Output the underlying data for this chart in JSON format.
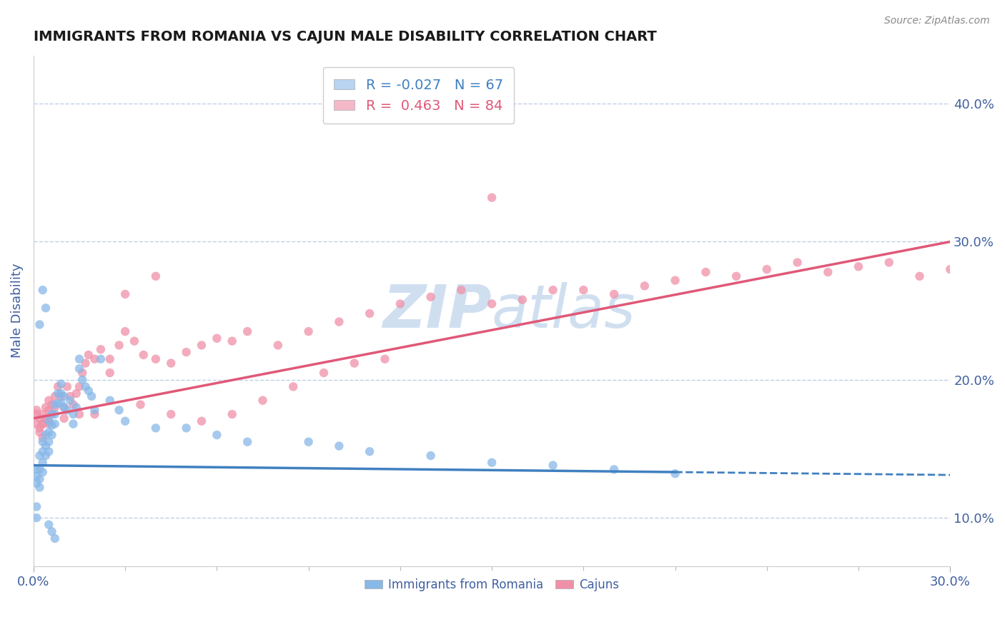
{
  "title": "IMMIGRANTS FROM ROMANIA VS CAJUN MALE DISABILITY CORRELATION CHART",
  "source": "Source: ZipAtlas.com",
  "ylabel": "Male Disability",
  "xlim": [
    0.0,
    0.3
  ],
  "ylim": [
    0.065,
    0.435
  ],
  "right_yticks": [
    0.1,
    0.2,
    0.3,
    0.4
  ],
  "right_yticklabels": [
    "10.0%",
    "20.0%",
    "30.0%",
    "40.0%"
  ],
  "legend_entries": [
    {
      "label": "R = -0.027   N = 67",
      "color": "#b8d4f0"
    },
    {
      "label": "R =  0.463   N = 84",
      "color": "#f4b8c8"
    }
  ],
  "legend_labels_bottom": [
    "Immigrants from Romania",
    "Cajuns"
  ],
  "romania_color": "#88b8e8",
  "cajun_color": "#f090a8",
  "romania_line_color": "#4080c0",
  "cajun_line_color": "#e05878",
  "watermark_color": "#d0dff0",
  "background_color": "#ffffff",
  "grid_color": "#c0d0e8",
  "title_color": "#1a1a1a",
  "axis_label_color": "#4060a0",
  "romania_line_solid_end": 0.21,
  "romania_scatter": {
    "x": [
      0.001,
      0.001,
      0.001,
      0.002,
      0.002,
      0.002,
      0.002,
      0.003,
      0.003,
      0.003,
      0.003,
      0.004,
      0.004,
      0.004,
      0.005,
      0.005,
      0.005,
      0.005,
      0.006,
      0.006,
      0.006,
      0.007,
      0.007,
      0.007,
      0.008,
      0.008,
      0.009,
      0.009,
      0.009,
      0.01,
      0.01,
      0.011,
      0.012,
      0.013,
      0.013,
      0.014,
      0.015,
      0.015,
      0.016,
      0.017,
      0.018,
      0.019,
      0.02,
      0.022,
      0.025,
      0.028,
      0.03,
      0.04,
      0.05,
      0.06,
      0.07,
      0.09,
      0.1,
      0.11,
      0.13,
      0.15,
      0.17,
      0.19,
      0.21,
      0.005,
      0.006,
      0.007,
      0.003,
      0.004,
      0.002,
      0.001,
      0.001
    ],
    "y": [
      0.135,
      0.13,
      0.125,
      0.145,
      0.135,
      0.128,
      0.122,
      0.155,
      0.148,
      0.14,
      0.133,
      0.16,
      0.152,
      0.145,
      0.17,
      0.162,
      0.155,
      0.148,
      0.175,
      0.167,
      0.16,
      0.182,
      0.175,
      0.168,
      0.19,
      0.183,
      0.197,
      0.19,
      0.183,
      0.188,
      0.18,
      0.178,
      0.185,
      0.175,
      0.168,
      0.18,
      0.215,
      0.208,
      0.2,
      0.195,
      0.192,
      0.188,
      0.178,
      0.215,
      0.185,
      0.178,
      0.17,
      0.165,
      0.165,
      0.16,
      0.155,
      0.155,
      0.152,
      0.148,
      0.145,
      0.14,
      0.138,
      0.135,
      0.132,
      0.095,
      0.09,
      0.085,
      0.265,
      0.252,
      0.24,
      0.1,
      0.108
    ]
  },
  "cajun_scatter": {
    "x": [
      0.001,
      0.001,
      0.002,
      0.002,
      0.003,
      0.003,
      0.003,
      0.004,
      0.004,
      0.005,
      0.005,
      0.005,
      0.006,
      0.006,
      0.007,
      0.007,
      0.008,
      0.009,
      0.01,
      0.011,
      0.012,
      0.013,
      0.014,
      0.015,
      0.016,
      0.017,
      0.018,
      0.02,
      0.022,
      0.025,
      0.028,
      0.03,
      0.033,
      0.036,
      0.04,
      0.045,
      0.05,
      0.055,
      0.06,
      0.065,
      0.07,
      0.08,
      0.09,
      0.1,
      0.11,
      0.12,
      0.13,
      0.14,
      0.15,
      0.16,
      0.17,
      0.18,
      0.19,
      0.2,
      0.21,
      0.22,
      0.23,
      0.24,
      0.25,
      0.26,
      0.27,
      0.28,
      0.29,
      0.3,
      0.15,
      0.04,
      0.03,
      0.02,
      0.015,
      0.01,
      0.005,
      0.003,
      0.002,
      0.001,
      0.025,
      0.035,
      0.045,
      0.055,
      0.065,
      0.075,
      0.085,
      0.095,
      0.105,
      0.115
    ],
    "y": [
      0.168,
      0.178,
      0.172,
      0.162,
      0.175,
      0.168,
      0.158,
      0.18,
      0.172,
      0.185,
      0.178,
      0.168,
      0.182,
      0.175,
      0.188,
      0.18,
      0.195,
      0.188,
      0.18,
      0.195,
      0.188,
      0.182,
      0.19,
      0.195,
      0.205,
      0.212,
      0.218,
      0.215,
      0.222,
      0.215,
      0.225,
      0.235,
      0.228,
      0.218,
      0.215,
      0.212,
      0.22,
      0.225,
      0.23,
      0.228,
      0.235,
      0.225,
      0.235,
      0.242,
      0.248,
      0.255,
      0.26,
      0.265,
      0.255,
      0.258,
      0.265,
      0.265,
      0.262,
      0.268,
      0.272,
      0.278,
      0.275,
      0.28,
      0.285,
      0.278,
      0.282,
      0.285,
      0.275,
      0.28,
      0.332,
      0.275,
      0.262,
      0.175,
      0.175,
      0.172,
      0.17,
      0.168,
      0.165,
      0.175,
      0.205,
      0.182,
      0.175,
      0.17,
      0.175,
      0.185,
      0.195,
      0.205,
      0.212,
      0.215
    ]
  },
  "romania_line": {
    "x0": 0.0,
    "x1": 0.3,
    "y0": 0.138,
    "y1": 0.131
  },
  "cajun_line": {
    "x0": 0.0,
    "x1": 0.3,
    "y0": 0.172,
    "y1": 0.3
  }
}
